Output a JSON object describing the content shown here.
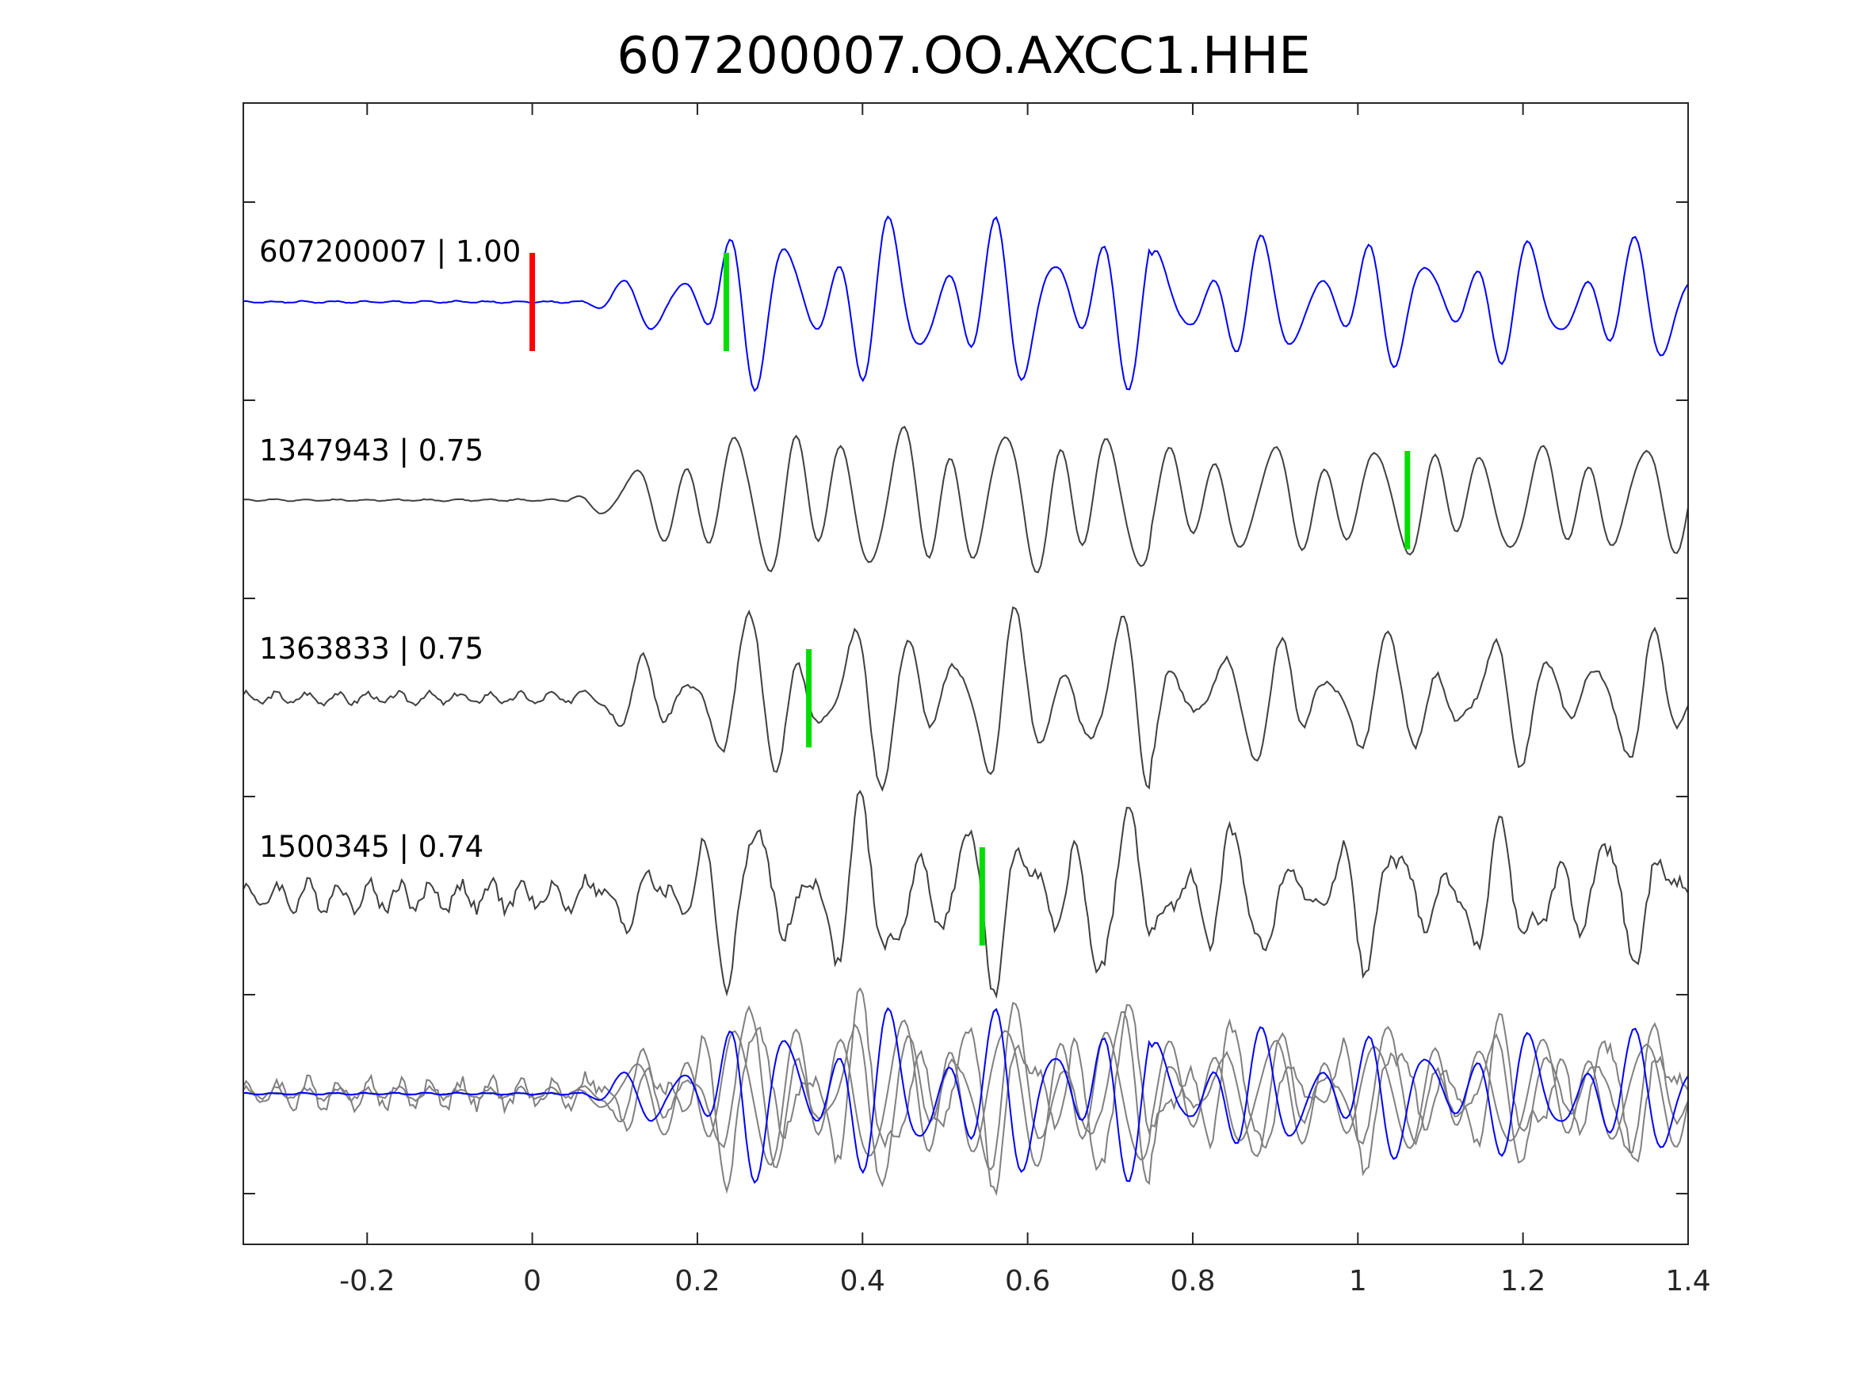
{
  "chart_data": {
    "type": "line",
    "title": "607200007.OO.AXCC1.HHE",
    "xlabel": "",
    "ylabel": "",
    "xlim": [
      -0.35,
      1.4
    ],
    "xticks": [
      -0.2,
      0,
      0.2,
      0.4,
      0.6,
      0.8,
      1,
      1.2,
      1.4
    ],
    "xtick_labels": [
      "-0.2",
      "0",
      "0.2",
      "0.4",
      "0.6",
      "0.8",
      "1",
      "1.2",
      "1.4"
    ],
    "grid": false,
    "traces": [
      {
        "id": "607200007",
        "cc": "1.00",
        "label": "607200007 | 1.00",
        "color": "#0000ff",
        "onset": 0.06,
        "seed": 1,
        "picks": [
          {
            "t": 0,
            "color": "#ff0000"
          },
          {
            "t": 0.235,
            "color": "#00dd00"
          }
        ]
      },
      {
        "id": "1347943",
        "cc": "0.75",
        "label": "1347943 | 0.75",
        "color": "#404040",
        "onset": 0.04,
        "seed": 2,
        "picks": [
          {
            "t": 1.06,
            "color": "#00dd00"
          }
        ]
      },
      {
        "id": "1363833",
        "cc": "0.75",
        "label": "1363833 | 0.75",
        "color": "#404040",
        "onset": 0.04,
        "seed": 3,
        "picks": [
          {
            "t": 0.335,
            "color": "#00dd00"
          }
        ]
      },
      {
        "id": "1500345",
        "cc": "0.74",
        "label": "1500345 | 0.74",
        "color": "#404040",
        "onset": 0.04,
        "seed": 4,
        "picks": [
          {
            "t": 0.545,
            "color": "#00dd00"
          }
        ]
      }
    ],
    "overlay": {
      "description_colors": {
        "reference": "#0000ff",
        "others": "#808080"
      }
    }
  }
}
